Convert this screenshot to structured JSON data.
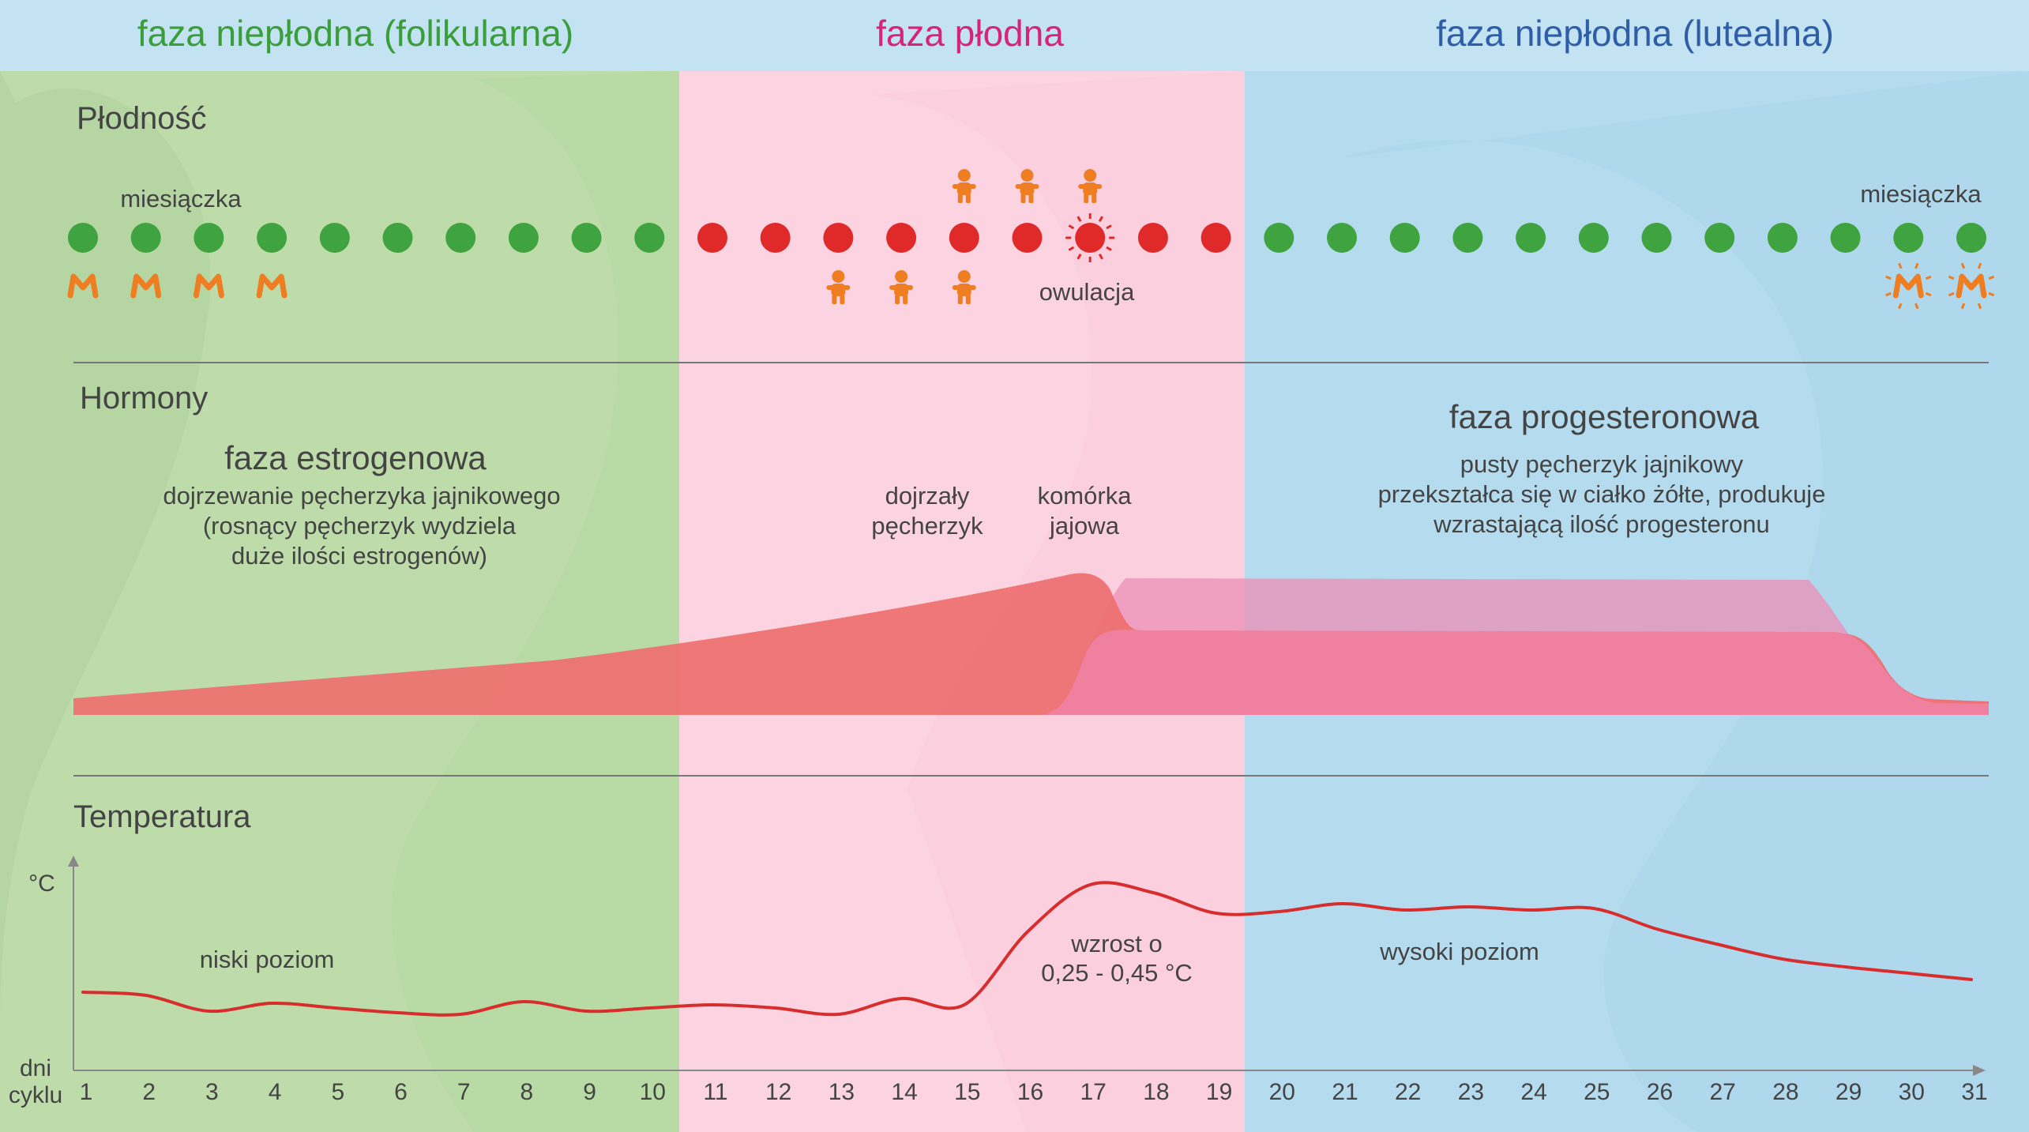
{
  "phases": {
    "follicular": {
      "title": "faza niepłodna (folikularna)",
      "color": "#3a9e3a"
    },
    "fertile": {
      "title": "faza płodna",
      "color": "#d6247a"
    },
    "luteal": {
      "title": "faza niepłodna (lutealna)",
      "color": "#2f5ea8"
    }
  },
  "sections": {
    "fertility": "Płodność",
    "hormones": "Hormony",
    "temperature": "Temperatura"
  },
  "fertility": {
    "menstruation_label_start": "miesiączka",
    "menstruation_label_end": "miesiączka",
    "ovulation_label": "owulacja",
    "infertile_day_color": "#3fa33f",
    "fertile_day_color": "#e02a2a",
    "icon_color": "#ef7d22",
    "fertile_days": [
      11,
      19
    ],
    "ovulation_day": 17,
    "menstruation_days": [
      1,
      2,
      3,
      4
    ],
    "menstruation_days_next": [
      30,
      31
    ],
    "baby_days_above": [
      15,
      16,
      17
    ],
    "baby_days_below": [
      13,
      14,
      15
    ]
  },
  "hormones": {
    "estrogen_title": "faza estrogenowa",
    "estrogen_desc": [
      "dojrzewanie pęcherzyka jajnikowego",
      "(rosnący pęcherzyk wydziela",
      "duże ilości estrogenów)"
    ],
    "follicle_label": [
      "dojrzały",
      "pęcherzyk"
    ],
    "egg_label": [
      "komórka",
      "jajowa"
    ],
    "progesterone_title": "faza progesteronowa",
    "progesterone_desc": [
      "pusty pęcherzyk jajnikowy",
      "przekształca się w ciałko żółte, produkuje",
      "wzrastającą ilość progesteronu"
    ],
    "estrogen_color": "#ee6f6f",
    "progesterone_color": "#f0809f"
  },
  "temperature": {
    "unit_label": "°C",
    "x_label_line1": "dni",
    "x_label_line2": "cyklu",
    "low_label": "niski poziom",
    "rise_label_line1": "wzrost o",
    "rise_label_line2": "0,25 - 0,45 °C",
    "high_label": "wysoki poziom",
    "line_color": "#d82d2d"
  },
  "chart_data": {
    "type": "line",
    "title": "Temperatura",
    "xlabel": "dni cyklu",
    "ylabel": "°C",
    "x": [
      1,
      2,
      3,
      4,
      5,
      6,
      7,
      8,
      9,
      10,
      11,
      12,
      13,
      14,
      15,
      16,
      17,
      18,
      19,
      20,
      21,
      22,
      23,
      24,
      25,
      26,
      27,
      28,
      29,
      30,
      31
    ],
    "series": [
      {
        "values": [
          0.22,
          0.2,
          0.1,
          0.15,
          0.12,
          0.09,
          0.08,
          0.16,
          0.1,
          0.12,
          0.14,
          0.12,
          0.08,
          0.18,
          0.14,
          0.6,
          0.9,
          0.85,
          0.72,
          0.73,
          0.78,
          0.74,
          0.76,
          0.74,
          0.75,
          0.62,
          0.52,
          0.43,
          0.38,
          0.34,
          0.3
        ]
      }
    ],
    "legend": "none",
    "grid": false
  }
}
